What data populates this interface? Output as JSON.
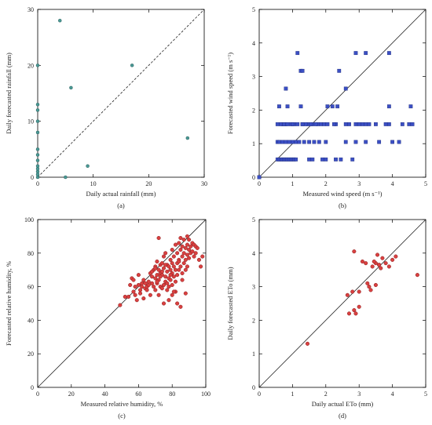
{
  "chart_data": [
    {
      "type": "scatter",
      "panel_label": "(a)",
      "xlabel": "Daily actual rainfall (mm)",
      "ylabel": "Daily forecasted rainfall (mm)",
      "xlim": [
        0,
        30
      ],
      "ylim": [
        0,
        30
      ],
      "xticks": [
        0,
        10,
        20,
        30
      ],
      "yticks": [
        0,
        10,
        20,
        30
      ],
      "reference_line": "1:1 dashed",
      "marker_color": "#4a9a96",
      "x": [
        0,
        0,
        0,
        0,
        0,
        0,
        0,
        0,
        0,
        0,
        0,
        0,
        0,
        4,
        5,
        6,
        9,
        17,
        27
      ],
      "y": [
        0,
        1,
        2,
        3,
        5,
        8,
        10,
        12,
        13,
        20,
        0.5,
        1.5,
        4,
        28,
        0,
        16,
        2,
        20,
        7
      ]
    },
    {
      "type": "scatter",
      "panel_label": "(b)",
      "xlabel": "Measured wind speed (m s⁻¹)",
      "ylabel": "Forecasted wind speed (m s⁻¹)",
      "xlim": [
        0,
        5
      ],
      "ylim": [
        0,
        5
      ],
      "xticks": [
        0,
        1,
        2,
        3,
        4,
        5
      ],
      "yticks": [
        0,
        1,
        2,
        3,
        4,
        5
      ],
      "reference_line": "1:1 solid",
      "marker_color": "#3b4fc4",
      "x": [
        0,
        0.55,
        0.6,
        0.65,
        0.7,
        0.75,
        0.8,
        0.85,
        0.9,
        0.95,
        1.0,
        1.05,
        1.1,
        1.5,
        1.6,
        1.9,
        2.0,
        2.3,
        2.45,
        2.8,
        0.55,
        0.6,
        0.7,
        0.8,
        0.9,
        1.0,
        1.1,
        1.2,
        1.35,
        1.5,
        1.65,
        1.8,
        2.0,
        2.6,
        2.9,
        3.2,
        3.6,
        4.0,
        4.2,
        0.7,
        0.8,
        1.05,
        1.3,
        1.45,
        1.6,
        1.75,
        1.85,
        1.95,
        2.3,
        2.6,
        2.7,
        3.3,
        3.8,
        4.3,
        0.55,
        0.65,
        0.75,
        0.85,
        0.95,
        1.0,
        1.15,
        1.3,
        1.4,
        1.55,
        1.7,
        2.05,
        2.25,
        2.9,
        3.0,
        3.1,
        3.2,
        3.5,
        3.9,
        4.5,
        4.6,
        0.6,
        0.85,
        1.25,
        2.05,
        2.2,
        2.35,
        3.9,
        4.55,
        0.8,
        2.6,
        1.25,
        1.3,
        2.4,
        1.15,
        2.9,
        3.2,
        3.9
      ],
      "y": [
        0,
        0.53,
        0.53,
        0.53,
        0.53,
        0.53,
        0.53,
        0.53,
        0.53,
        0.53,
        0.53,
        0.53,
        0.53,
        0.53,
        0.53,
        0.53,
        0.53,
        0.53,
        0.53,
        0.53,
        1.05,
        1.05,
        1.05,
        1.05,
        1.05,
        1.05,
        1.05,
        1.05,
        1.05,
        1.05,
        1.05,
        1.05,
        1.05,
        1.05,
        1.05,
        1.05,
        1.05,
        1.05,
        1.05,
        1.58,
        1.58,
        1.58,
        1.58,
        1.58,
        1.58,
        1.58,
        1.58,
        1.58,
        1.58,
        1.58,
        1.58,
        1.58,
        1.58,
        1.58,
        1.58,
        1.58,
        1.58,
        1.58,
        1.58,
        1.58,
        1.58,
        1.58,
        1.58,
        1.58,
        1.58,
        1.58,
        1.58,
        1.58,
        1.58,
        1.58,
        1.58,
        1.58,
        1.58,
        1.58,
        1.58,
        2.11,
        2.11,
        2.11,
        2.11,
        2.11,
        2.11,
        2.11,
        2.11,
        2.64,
        2.64,
        3.17,
        3.17,
        3.17,
        3.7,
        3.7,
        3.7,
        3.7
      ]
    },
    {
      "type": "scatter",
      "panel_label": "(c)",
      "xlabel": "Measured relative humidity, %",
      "ylabel": "Forecasted relative humidity, %",
      "xlim": [
        0,
        100
      ],
      "ylim": [
        0,
        100
      ],
      "xticks": [
        0,
        20,
        40,
        60,
        80,
        100
      ],
      "yticks": [
        0,
        20,
        40,
        60,
        80,
        100
      ],
      "reference_line": "1:1 solid",
      "marker_color": "#d94040",
      "x": [
        49,
        52,
        54,
        55,
        56,
        57,
        57,
        58,
        58,
        59,
        60,
        60,
        61,
        61,
        62,
        62,
        63,
        63,
        64,
        64,
        65,
        65,
        66,
        66,
        67,
        67,
        68,
        68,
        69,
        69,
        70,
        70,
        70,
        71,
        71,
        71,
        72,
        72,
        72,
        73,
        73,
        73,
        74,
        74,
        74,
        75,
        75,
        75,
        76,
        76,
        76,
        77,
        77,
        77,
        78,
        78,
        78,
        79,
        79,
        79,
        80,
        80,
        80,
        80,
        81,
        81,
        81,
        82,
        82,
        82,
        83,
        83,
        83,
        84,
        84,
        84,
        85,
        85,
        85,
        86,
        86,
        86,
        87,
        87,
        87,
        88,
        88,
        88,
        89,
        89,
        89,
        90,
        90,
        90,
        91,
        91,
        92,
        92,
        93,
        93,
        94,
        94,
        95,
        96,
        97,
        98,
        72,
        75,
        78,
        80,
        83,
        85,
        88,
        74,
        77,
        70,
        82,
        86,
        79,
        68,
        76,
        71,
        84,
        89,
        73,
        81
      ],
      "y": [
        49,
        54,
        54,
        61,
        65,
        64,
        57,
        60,
        55,
        52,
        61,
        67,
        58,
        56,
        62,
        60,
        64,
        53,
        59,
        62,
        60,
        58,
        63,
        61,
        68,
        55,
        66,
        62,
        60,
        70,
        65,
        72,
        58,
        62,
        67,
        75,
        64,
        70,
        55,
        73,
        60,
        68,
        67,
        74,
        59,
        61,
        71,
        78,
        66,
        63,
        80,
        69,
        58,
        73,
        72,
        65,
        60,
        64,
        76,
        70,
        68,
        74,
        82,
        61,
        72,
        66,
        78,
        85,
        70,
        63,
        74,
        80,
        67,
        76,
        86,
        70,
        72,
        82,
        89,
        78,
        84,
        68,
        74,
        80,
        88,
        83,
        76,
        70,
        85,
        79,
        72,
        82,
        88,
        77,
        84,
        80,
        86,
        81,
        78,
        85,
        84,
        80,
        83,
        76,
        72,
        78,
        89,
        50,
        52,
        55,
        50,
        48,
        56,
        69,
        62,
        71,
        57,
        64,
        67,
        69,
        73,
        63,
        75,
        90,
        66,
        57
      ]
    },
    {
      "type": "scatter",
      "panel_label": "(d)",
      "xlabel": "Daily actual ETo (mm)",
      "ylabel": "Daily forecasted ETo (mm)",
      "xlim": [
        0,
        5
      ],
      "ylim": [
        0,
        5
      ],
      "xticks": [
        0,
        1,
        2,
        3,
        4,
        5
      ],
      "yticks": [
        0,
        1,
        2,
        3,
        4,
        5
      ],
      "reference_line": "1:1 solid",
      "marker_color": "#d94040",
      "x": [
        1.45,
        2.65,
        2.7,
        2.8,
        2.85,
        2.9,
        3.0,
        3.1,
        3.2,
        3.3,
        3.35,
        3.4,
        3.5,
        3.55,
        3.6,
        3.65,
        3.7,
        3.8,
        3.9,
        4.0,
        4.1,
        4.75,
        2.85,
        3.25,
        3.45,
        3.6,
        3.5,
        3.0
      ],
      "y": [
        1.3,
        2.75,
        2.2,
        2.85,
        4.05,
        2.2,
        2.85,
        3.75,
        3.7,
        3.0,
        2.9,
        3.6,
        3.7,
        3.95,
        3.65,
        3.55,
        3.85,
        3.7,
        3.6,
        3.8,
        3.9,
        3.35,
        2.3,
        3.1,
        3.75,
        3.65,
        3.05,
        2.4
      ]
    }
  ]
}
